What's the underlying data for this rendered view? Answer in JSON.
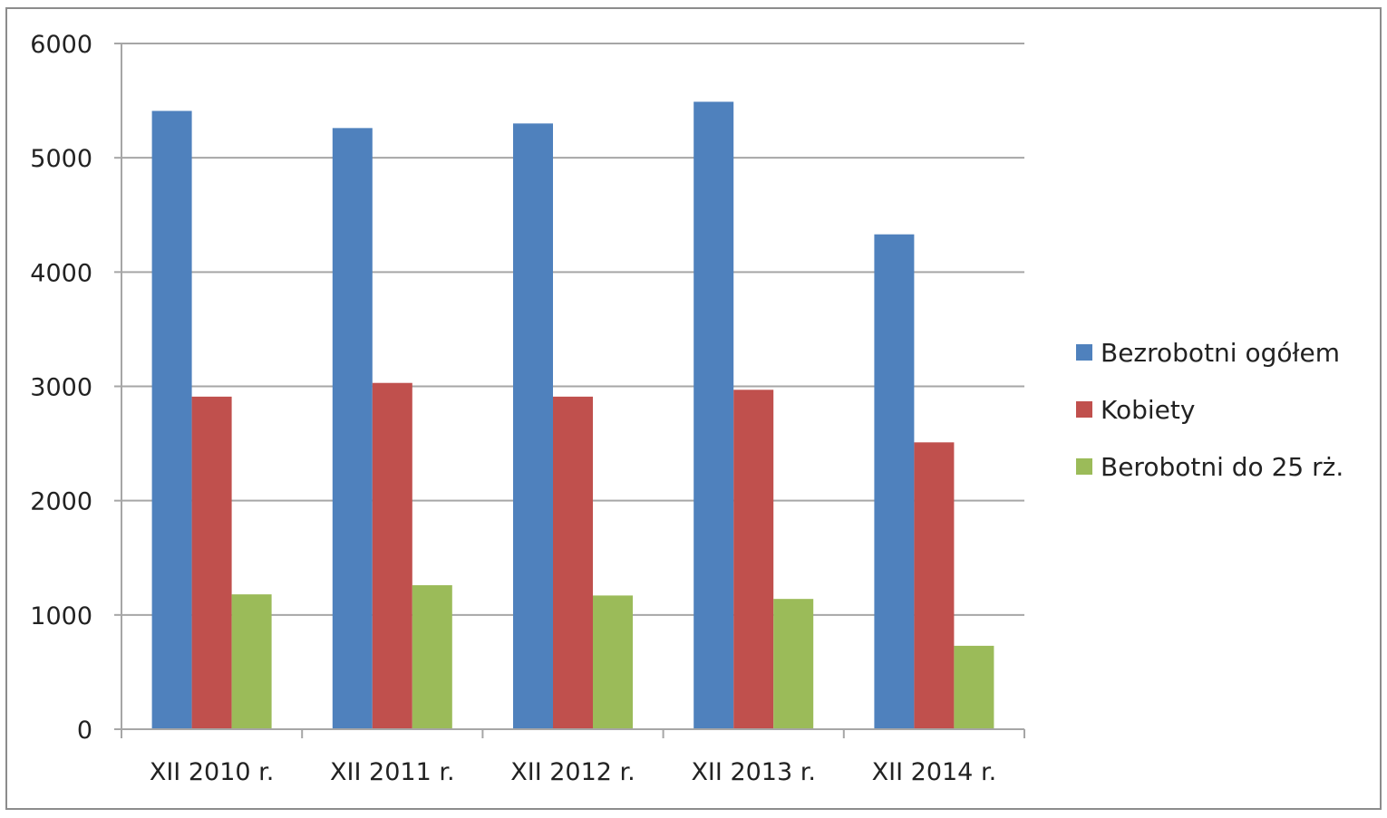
{
  "chart_data": {
    "type": "bar",
    "title": "",
    "xlabel": "",
    "ylabel": "",
    "categories": [
      "XII 2010 r.",
      "XII 2011 r.",
      "XII 2012 r.",
      "XII 2013 r.",
      "XII 2014 r."
    ],
    "series": [
      {
        "name": "Bezrobotni ogółem",
        "color": "#4f81bd",
        "values": [
          5410,
          5260,
          5300,
          5490,
          4330
        ]
      },
      {
        "name": "Kobiety",
        "color": "#c0504d",
        "values": [
          2910,
          3030,
          2910,
          2970,
          2510
        ]
      },
      {
        "name": "Berobotni do 25 rż.",
        "color": "#9bbb59",
        "values": [
          1180,
          1260,
          1170,
          1140,
          730
        ]
      }
    ],
    "ylim": [
      0,
      6000
    ],
    "yticks": [
      0,
      1000,
      2000,
      3000,
      4000,
      5000,
      6000
    ],
    "grid": true,
    "legend_position": "right",
    "colors": {
      "gridline": "#a6a6a6",
      "axis": "#a6a6a6",
      "frame": "#8c8c8c"
    }
  }
}
